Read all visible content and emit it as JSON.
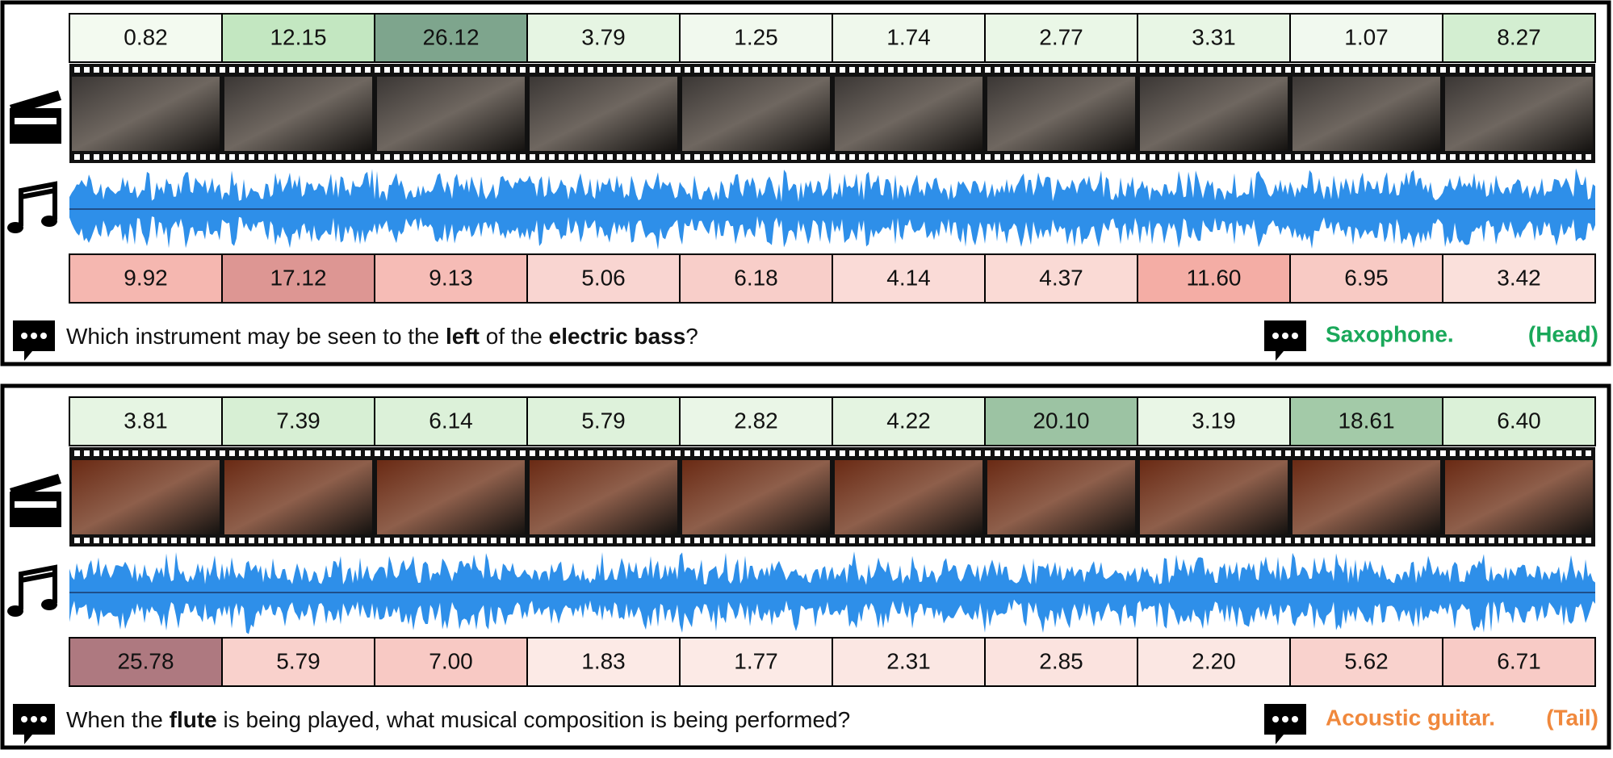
{
  "panels": [
    {
      "video_scores": [
        "0.82",
        "12.15",
        "26.12",
        "3.79",
        "1.25",
        "1.74",
        "2.77",
        "3.31",
        "1.07",
        "8.27"
      ],
      "audio_scores": [
        "9.92",
        "17.12",
        "9.13",
        "5.06",
        "6.18",
        "4.14",
        "4.37",
        "11.60",
        "6.95",
        "3.42"
      ],
      "question": [
        {
          "text": "Which instrument may be seen to the "
        },
        {
          "text": "left",
          "bold": true
        },
        {
          "text": " of the "
        },
        {
          "text": "electric bass",
          "bold": true
        },
        {
          "text": "?"
        }
      ],
      "answer": "Saxophone.",
      "tag": "(Head)",
      "answer_color": "#1aa85a",
      "frame_tone": "#3b3735"
    },
    {
      "video_scores": [
        "3.81",
        "7.39",
        "6.14",
        "5.79",
        "2.82",
        "4.22",
        "20.10",
        "3.19",
        "18.61",
        "6.40"
      ],
      "audio_scores": [
        "25.78",
        "5.79",
        "7.00",
        "1.83",
        "1.77",
        "2.31",
        "2.85",
        "2.20",
        "5.62",
        "6.71"
      ],
      "question": [
        {
          "text": "When the "
        },
        {
          "text": "flute",
          "bold": true
        },
        {
          "text": " is being played, what musical composition is being performed?"
        }
      ],
      "answer": "Acoustic guitar.",
      "tag": "(Tail)",
      "answer_color": "#f0883c",
      "frame_tone": "#6a2a14"
    }
  ]
}
